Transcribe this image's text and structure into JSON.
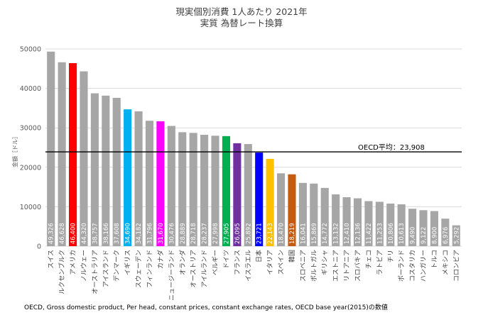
{
  "chart_data": {
    "type": "bar",
    "title": "現実個別消費 1人あたり 2021年",
    "subtitle": "実質 為替レート換算",
    "ylabel": "金額［ドル］",
    "ylim": [
      0,
      50000
    ],
    "yticks": [
      0,
      10000,
      20000,
      30000,
      40000,
      50000
    ],
    "grid": true,
    "legend": "none",
    "reference_line": {
      "label": "OECD平均：23,908",
      "value": 23908,
      "color": "#000000"
    },
    "source": "OECD, Gross domestic product, Per head, constant prices, constant exchange rates, OECD base year(2015)の数値",
    "default_bar_color": "#a6a6a6",
    "categories": [
      "スイス",
      "ルクセンブルク",
      "アメリカ",
      "ノルウェー",
      "オーストラリア",
      "アイスランド",
      "デンマーク",
      "イギリス",
      "スウェーデン",
      "フィンランド",
      "カナダ",
      "ニュージーランド",
      "オランダ",
      "オーストリア",
      "アイルランド",
      "ベルギー",
      "ドイツ",
      "フランス",
      "イスラエル",
      "日本",
      "イタリア",
      "スペイン",
      "韓国",
      "スロベニア",
      "ポルトガル",
      "ギリシャ",
      "エストニア",
      "リトアニア",
      "スロバキア",
      "チェコ",
      "ラトビア",
      "チリ",
      "ポーランド",
      "コスタリカ",
      "ハンガリー",
      "トルコ",
      "メキシコ",
      "コロンビア"
    ],
    "values": [
      49326,
      46628,
      46400,
      44320,
      38757,
      38166,
      37608,
      34690,
      34182,
      31796,
      31670,
      30476,
      28889,
      28718,
      28237,
      27998,
      27905,
      26095,
      25892,
      23721,
      22143,
      18470,
      18219,
      16041,
      15869,
      14772,
      13132,
      12410,
      12136,
      11422,
      11253,
      10806,
      10613,
      9490,
      9122,
      8900,
      6976,
      5292
    ],
    "value_labels": [
      "49,326",
      "46,628",
      "46,400",
      "44,320",
      "38,757",
      "38,166",
      "37,608",
      "34,690",
      "34,182",
      "31,796",
      "31,670",
      "30,476",
      "28,889",
      "28,718",
      "28,237",
      "27,998",
      "27,905",
      "26,095",
      "25,892",
      "23,721",
      "22,143",
      "18,470",
      "18,219",
      "16,041",
      "15,869",
      "14,772",
      "13,132",
      "12,410",
      "12,136",
      "11,422",
      "11,253",
      "10,806",
      "10,613",
      "9,490",
      "9,122",
      "8,900",
      "6,976",
      "5,292"
    ],
    "bar_colors": [
      "#a6a6a6",
      "#a6a6a6",
      "#ff0000",
      "#a6a6a6",
      "#a6a6a6",
      "#a6a6a6",
      "#a6a6a6",
      "#00b0f0",
      "#a6a6a6",
      "#a6a6a6",
      "#ff00ff",
      "#a6a6a6",
      "#a6a6a6",
      "#a6a6a6",
      "#a6a6a6",
      "#a6a6a6",
      "#00b050",
      "#7030a0",
      "#a6a6a6",
      "#0000ff",
      "#ffc000",
      "#a6a6a6",
      "#c55a11",
      "#a6a6a6",
      "#a6a6a6",
      "#a6a6a6",
      "#a6a6a6",
      "#a6a6a6",
      "#a6a6a6",
      "#a6a6a6",
      "#a6a6a6",
      "#a6a6a6",
      "#a6a6a6",
      "#a6a6a6",
      "#a6a6a6",
      "#a6a6a6",
      "#a6a6a6",
      "#a6a6a6"
    ]
  }
}
